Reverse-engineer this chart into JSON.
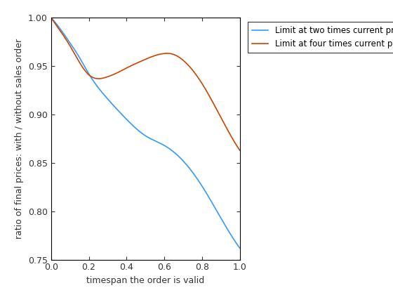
{
  "xlabel": "timespan the order is valid",
  "ylabel": "ratio of final prices: with / without sales order",
  "xlim": [
    0,
    1
  ],
  "ylim": [
    0.75,
    1.0
  ],
  "xticks": [
    0,
    0.2,
    0.4,
    0.6,
    0.8,
    1.0
  ],
  "yticks": [
    0.75,
    0.8,
    0.85,
    0.9,
    0.95,
    1.0
  ],
  "line1_color": "#3399FF",
  "line2_color": "#CC4400",
  "line1_label": "Limit at two times current price",
  "line2_label": "Limit at four times current price",
  "background_color": "#ffffff",
  "figsize": [
    5.6,
    4.2
  ],
  "dpi": 100,
  "blue_kx": [
    0.0,
    0.05,
    0.1,
    0.15,
    0.2,
    0.3,
    0.4,
    0.5,
    0.6,
    0.7,
    0.8,
    0.9,
    1.0
  ],
  "blue_ky": [
    1.0,
    0.988,
    0.974,
    0.959,
    0.942,
    0.916,
    0.895,
    0.878,
    0.868,
    0.852,
    0.826,
    0.793,
    0.762
  ],
  "orange_kx": [
    0.0,
    0.05,
    0.1,
    0.15,
    0.2,
    0.25,
    0.3,
    0.35,
    0.4,
    0.5,
    0.6,
    0.65,
    0.7,
    0.8,
    0.9,
    1.0
  ],
  "orange_ky": [
    1.0,
    0.986,
    0.971,
    0.954,
    0.941,
    0.937,
    0.939,
    0.943,
    0.948,
    0.957,
    0.963,
    0.962,
    0.956,
    0.932,
    0.897,
    0.863
  ]
}
